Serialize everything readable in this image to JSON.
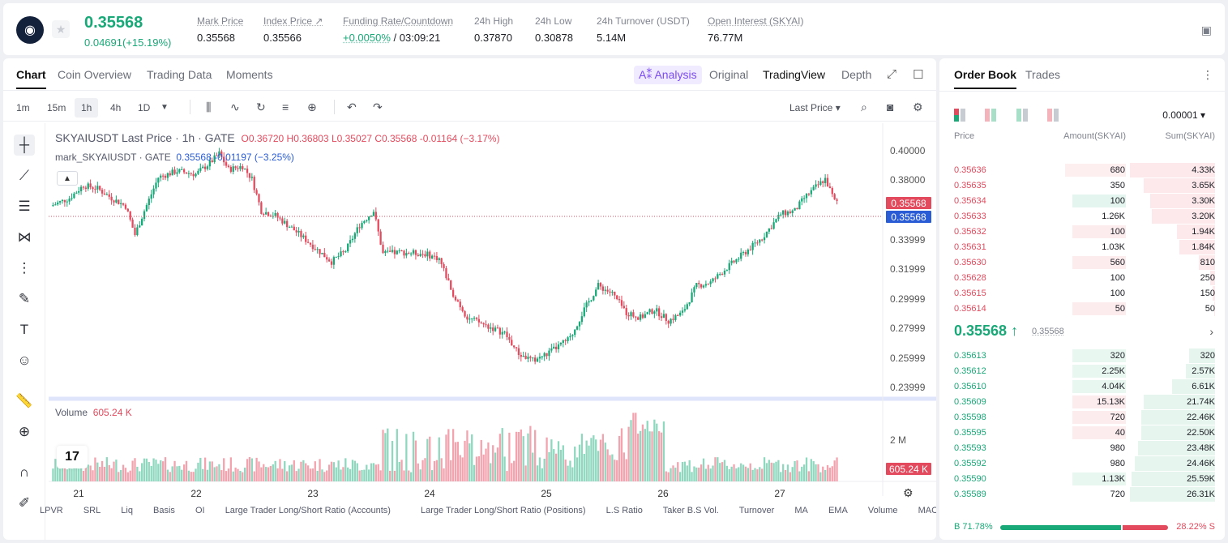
{
  "header": {
    "last_price": "0.35568",
    "change": "0.04691(+15.19%)",
    "stats": [
      {
        "label": "Mark Price",
        "value": "0.35568"
      },
      {
        "label": "Index Price ↗",
        "value": "0.35566"
      },
      {
        "label": "Funding Rate/Countdown",
        "value_green": "+0.0050%",
        "value": " / 03:09:21"
      },
      {
        "label": "24h High",
        "value": "0.37870"
      },
      {
        "label": "24h Low",
        "value": "0.30878"
      },
      {
        "label": "24h Turnover (USDT)",
        "value": "5.14M"
      },
      {
        "label": "Open Interest (SKYAI)",
        "value": "76.77M"
      }
    ]
  },
  "chart_tabs": [
    "Chart",
    "Coin Overview",
    "Trading Data",
    "Moments"
  ],
  "chart_view_tabs": {
    "ai": "A⁑ Analysis",
    "original": "Original",
    "tradingview": "TradingView",
    "depth": "Depth"
  },
  "timeframes": [
    "1m",
    "15m",
    "1h",
    "4h",
    "1D"
  ],
  "selected_timeframe": "1h",
  "price_type": "Last Price",
  "legend": {
    "symbol": "SKYAIUSDT Last Price · 1h · GATE",
    "ohlc": "O0.36720  H0.36803  L0.35027  C0.35568  -0.01164 (−3.17%)",
    "mark_label": "mark_SKYAIUSDT · GATE",
    "mark_values": "0.35568  -0.01197 (−3.25%)",
    "volume_label": "Volume",
    "volume_value": "605.24 K"
  },
  "bottom_indicators": [
    "LPVR",
    "SRL",
    "Liq",
    "Basis",
    "OI",
    "Large Trader Long/Short Ratio (Accounts)",
    "Large Trader Long/Short Ratio (Positions)",
    "L.S Ratio",
    "Taker B.S Vol.",
    "Turnover",
    "MA",
    "EMA",
    "Volume",
    "MACL"
  ],
  "chart_data": {
    "type": "candlestick",
    "x_labels": [
      "21",
      "22",
      "23",
      "24",
      "25",
      "26",
      "27"
    ],
    "y_ticks": [
      "0.40000",
      "0.38000",
      "0.33999",
      "0.31999",
      "0.29999",
      "0.27999",
      "0.25999",
      "0.23999"
    ],
    "volume_tick": "2 M",
    "current_price_label": "0.35568",
    "mark_price_label": "0.35568",
    "volume_price_label": "605.24 K",
    "ylim": [
      0.235,
      0.405
    ],
    "colors": {
      "up": "#19a878",
      "down": "#e34a5d"
    }
  },
  "orderbook": {
    "tabs": [
      "Order Book",
      "Trades"
    ],
    "precision": "0.00001",
    "headers": {
      "price": "Price",
      "amount": "Amount(SKYAI)",
      "sum": "Sum(SKYAI)"
    },
    "asks": [
      {
        "price": "0.35636",
        "amount": "680",
        "sum": "4.33K",
        "depth": 1.0,
        "amt_frac": 0.68
      },
      {
        "price": "0.35635",
        "amount": "350",
        "sum": "3.65K",
        "depth": 0.84,
        "amt_frac": 0.0
      },
      {
        "price": "0.35634",
        "amount": "100",
        "sum": "3.30K",
        "depth": 0.76,
        "amt_frac": 0.6,
        "hl": "green"
      },
      {
        "price": "0.35633",
        "amount": "1.26K",
        "sum": "3.20K",
        "depth": 0.74,
        "amt_frac": 0.0
      },
      {
        "price": "0.35632",
        "amount": "100",
        "sum": "1.94K",
        "depth": 0.45,
        "amt_frac": 0.6,
        "hl": "red"
      },
      {
        "price": "0.35631",
        "amount": "1.03K",
        "sum": "1.84K",
        "depth": 0.42,
        "amt_frac": 0.0
      },
      {
        "price": "0.35630",
        "amount": "560",
        "sum": "810",
        "depth": 0.19,
        "amt_frac": 0.6,
        "hl": "red"
      },
      {
        "price": "0.35628",
        "amount": "100",
        "sum": "250",
        "depth": 0.06,
        "amt_frac": 0.0
      },
      {
        "price": "0.35615",
        "amount": "100",
        "sum": "150",
        "depth": 0.03,
        "amt_frac": 0.0
      },
      {
        "price": "0.35614",
        "amount": "50",
        "sum": "50",
        "depth": 0.01,
        "amt_frac": 0.6,
        "hl": "red"
      }
    ],
    "mid_price": "0.35568 ↑",
    "mid_mark": "0.35568",
    "bids": [
      {
        "price": "0.35613",
        "amount": "320",
        "sum": "320",
        "depth": 0.3,
        "amt_frac": 0.6
      },
      {
        "price": "0.35612",
        "amount": "2.25K",
        "sum": "2.57K",
        "depth": 0.34,
        "amt_frac": 0.6
      },
      {
        "price": "0.35610",
        "amount": "4.04K",
        "sum": "6.61K",
        "depth": 0.5,
        "amt_frac": 0.6
      },
      {
        "price": "0.35609",
        "amount": "15.13K",
        "sum": "21.74K",
        "depth": 0.84,
        "amt_frac": 0.6,
        "hl": "redamt"
      },
      {
        "price": "0.35598",
        "amount": "720",
        "sum": "22.46K",
        "depth": 0.87,
        "amt_frac": 0.6,
        "hl": "redamt"
      },
      {
        "price": "0.35595",
        "amount": "40",
        "sum": "22.50K",
        "depth": 0.87,
        "amt_frac": 0.6,
        "hl": "redamt"
      },
      {
        "price": "0.35593",
        "amount": "980",
        "sum": "23.48K",
        "depth": 0.9,
        "amt_frac": 0.0
      },
      {
        "price": "0.35592",
        "amount": "980",
        "sum": "24.46K",
        "depth": 0.94,
        "amt_frac": 0.0
      },
      {
        "price": "0.35590",
        "amount": "1.13K",
        "sum": "25.59K",
        "depth": 0.98,
        "amt_frac": 0.6
      },
      {
        "price": "0.35589",
        "amount": "720",
        "sum": "26.31K",
        "depth": 1.0,
        "amt_frac": 0.0
      }
    ],
    "buy_ratio": "B 71.78%",
    "sell_ratio": "28.22% S",
    "buy_frac": 0.7178
  }
}
